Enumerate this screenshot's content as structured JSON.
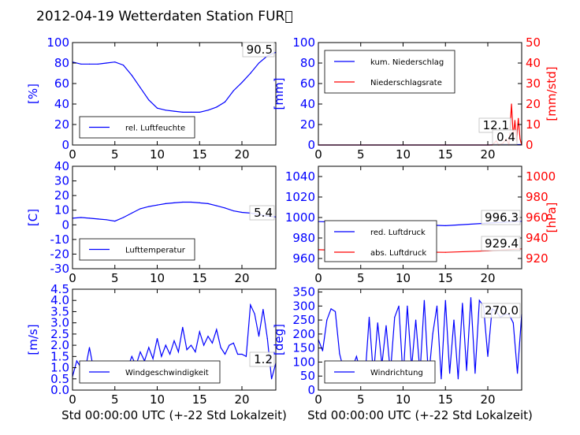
{
  "figure": {
    "title": "2012-04-19 Wetterdaten Station FUR\u0000"
  },
  "colors": {
    "left_axis": "#0000ff",
    "right_axis": "#ff0000",
    "series_blue": "#0000ff",
    "series_red": "#ff0000",
    "faint": "#7070ff"
  },
  "chart_data": [
    {
      "id": "humidity",
      "type": "line",
      "ylabel": "[%]",
      "xlim": [
        0,
        24
      ],
      "ylim": [
        0,
        100
      ],
      "xticks": [
        "0",
        "5",
        "10",
        "15",
        "20"
      ],
      "yticks": [
        "0",
        "20",
        "40",
        "60",
        "80",
        "100"
      ],
      "legend": [
        "rel. Luftfeuchte"
      ],
      "legend_position": "lower-left",
      "last_value_label": "90.5",
      "series": [
        {
          "name": "rel. Luftfeuchte",
          "color": "blue",
          "x": [
            0,
            1,
            2,
            3,
            4,
            5,
            6,
            7,
            8,
            9,
            10,
            11,
            12,
            13,
            14,
            15,
            16,
            17,
            18,
            19,
            20,
            21,
            22,
            23,
            24
          ],
          "y": [
            81,
            79,
            79,
            79,
            80,
            81,
            78,
            68,
            56,
            44,
            36,
            34,
            33,
            32,
            32,
            32,
            34,
            37,
            42,
            53,
            61,
            70,
            80,
            87,
            90.5
          ]
        }
      ]
    },
    {
      "id": "precipitation",
      "type": "line",
      "ylabel": "[mm]",
      "ylabel_right": "[mm/std]",
      "xlim": [
        0,
        24
      ],
      "ylim": [
        0,
        100
      ],
      "ylim_right": [
        0,
        50
      ],
      "xticks": [
        "0",
        "5",
        "10",
        "15",
        "20"
      ],
      "yticks": [
        "0",
        "20",
        "40",
        "60",
        "80",
        "100"
      ],
      "yticks_right": [
        "0",
        "10",
        "20",
        "30",
        "40",
        "50"
      ],
      "legend": [
        "kum. Niederschlag",
        "Niederschlagsrate"
      ],
      "legend_position": "upper-left",
      "value_labels": [
        "12.1",
        "0.4"
      ],
      "series": [
        {
          "name": "kum. Niederschlag",
          "color": "blue",
          "axis": "left",
          "x": [
            0,
            20,
            21,
            22,
            23,
            24
          ],
          "y": [
            0,
            0,
            0.2,
            0.3,
            0.4,
            0.4
          ]
        },
        {
          "name": "Niederschlagsrate",
          "color": "red",
          "axis": "right",
          "x": [
            0,
            20.5,
            21,
            21.3,
            21.8,
            22.2,
            22.5,
            22.8,
            23,
            23.2,
            23.4,
            23.6,
            23.8,
            24
          ],
          "y": [
            0,
            0,
            2,
            0,
            1,
            3,
            0,
            20,
            4,
            12,
            2,
            13,
            3,
            0
          ]
        }
      ]
    },
    {
      "id": "temperature",
      "type": "line",
      "ylabel": "[C]",
      "xlim": [
        0,
        24
      ],
      "ylim": [
        -30,
        40
      ],
      "xticks": [
        "0",
        "5",
        "10",
        "15",
        "20"
      ],
      "yticks": [
        "-30",
        "-20",
        "-10",
        "0",
        "10",
        "20",
        "30",
        "40"
      ],
      "legend": [
        "Lufttemperatur"
      ],
      "legend_position": "lower-left",
      "last_value_label": "5.4",
      "series": [
        {
          "name": "Lufttemperatur",
          "color": "blue",
          "x": [
            0,
            1,
            2,
            3,
            4,
            5,
            6,
            7,
            8,
            9,
            10,
            11,
            12,
            13,
            14,
            15,
            16,
            17,
            18,
            19,
            20,
            21,
            22,
            23,
            24
          ],
          "y": [
            4.5,
            5,
            4.5,
            4,
            3.5,
            2.5,
            5,
            8,
            11,
            12.5,
            13.5,
            14.5,
            15,
            15.5,
            15.5,
            15,
            14.5,
            13,
            11.5,
            9.5,
            8.5,
            8,
            7,
            6,
            5.4
          ]
        }
      ]
    },
    {
      "id": "pressure",
      "type": "line",
      "xlim": [
        0,
        24
      ],
      "ylim": [
        950,
        1050
      ],
      "ylim_right": [
        910,
        1010
      ],
      "xticks": [
        "0",
        "5",
        "10",
        "15",
        "20"
      ],
      "yticks": [
        "960",
        "980",
        "1000",
        "1020",
        "1040"
      ],
      "yticks_right": [
        "920",
        "940",
        "960",
        "980",
        "1000"
      ],
      "ylabel_right": "[hPa]",
      "legend": [
        "red. Luftdruck",
        "abs. Luftdruck"
      ],
      "legend_position": "lower-left",
      "value_labels": [
        "996.3",
        "929.4"
      ],
      "series": [
        {
          "name": "red. Luftdruck",
          "color": "blue",
          "axis": "left",
          "x": [
            0,
            5,
            10,
            15,
            20,
            24
          ],
          "y": [
            996,
            995,
            993.5,
            992,
            994.5,
            996.3
          ]
        },
        {
          "name": "abs. Luftdruck",
          "color": "red",
          "axis": "right",
          "x": [
            0,
            5,
            10,
            15,
            20,
            24
          ],
          "y": [
            928.5,
            927.5,
            926.5,
            926,
            927.5,
            929.4
          ]
        }
      ]
    },
    {
      "id": "wind_speed",
      "type": "line",
      "ylabel": "[m/s]",
      "xlabel": "Std 00:00:00 UTC (+-22 Std Lokalzeit)",
      "xlim": [
        0,
        24
      ],
      "ylim": [
        0,
        4.5
      ],
      "xticks": [
        "0",
        "5",
        "10",
        "15",
        "20"
      ],
      "yticks": [
        "0.0",
        "0.5",
        "1.0",
        "1.5",
        "2.0",
        "2.5",
        "3.0",
        "3.5",
        "4.0",
        "4.5"
      ],
      "legend": [
        "Windgeschwindigkeit"
      ],
      "legend_position": "lower-left",
      "last_value_label": "1.2",
      "series": [
        {
          "name": "Windgeschwindigkeit",
          "color": "blue",
          "x": [
            0,
            0.5,
            1,
            1.5,
            2,
            2.5,
            3,
            3.5,
            4,
            4.5,
            5,
            5.5,
            6,
            6.5,
            7,
            7.5,
            8,
            8.5,
            9,
            9.5,
            10,
            10.5,
            11,
            11.5,
            12,
            12.5,
            13,
            13.5,
            14,
            14.5,
            15,
            15.5,
            16,
            16.5,
            17,
            17.5,
            18,
            18.5,
            19,
            19.5,
            20,
            20.5,
            21,
            21.5,
            22,
            22.5,
            23,
            23.5,
            24
          ],
          "y": [
            0.6,
            1.3,
            1.0,
            0.9,
            1.9,
            0.9,
            0.8,
            0.7,
            0.5,
            0.6,
            0.4,
            0.5,
            0.9,
            1.0,
            1.5,
            1.1,
            1.7,
            1.3,
            1.9,
            1.4,
            2.3,
            1.5,
            2.0,
            1.6,
            2.2,
            1.7,
            2.8,
            1.8,
            2.0,
            1.7,
            2.6,
            2.0,
            2.4,
            2.1,
            2.7,
            1.9,
            1.6,
            2.0,
            2.1,
            1.6,
            1.6,
            1.5,
            3.8,
            3.4,
            2.4,
            3.6,
            2.3,
            0.5,
            1.2
          ]
        }
      ]
    },
    {
      "id": "wind_direction",
      "type": "line",
      "ylabel": "[deg]",
      "xlabel": "Std 00:00:00 UTC (+-22 Std Lokalzeit)",
      "xlim": [
        0,
        24
      ],
      "ylim": [
        0,
        360
      ],
      "xticks": [
        "0",
        "5",
        "10",
        "15",
        "20"
      ],
      "yticks": [
        "0",
        "50",
        "100",
        "150",
        "200",
        "250",
        "300",
        "350"
      ],
      "legend": [
        "Windrichtung"
      ],
      "legend_position": "lower-left",
      "last_value_label": "270.0",
      "series": [
        {
          "name": "Windrichtung",
          "color": "blue",
          "x": [
            0,
            0.5,
            1,
            1.5,
            2,
            2.5,
            3,
            3.5,
            4,
            4.5,
            5,
            5.5,
            6,
            6.5,
            7,
            7.5,
            8,
            8.5,
            9,
            9.5,
            10,
            10.5,
            11,
            11.5,
            12,
            12.5,
            13,
            13.5,
            14,
            14.5,
            15,
            15.5,
            16,
            16.5,
            17,
            17.5,
            18,
            18.5,
            19,
            19.5,
            20,
            20.5,
            21,
            21.5,
            22,
            22.5,
            23,
            23.5,
            24
          ],
          "y": [
            180,
            140,
            250,
            290,
            280,
            130,
            70,
            50,
            80,
            120,
            60,
            40,
            260,
            50,
            240,
            90,
            230,
            60,
            260,
            300,
            40,
            300,
            80,
            250,
            60,
            320,
            40,
            200,
            300,
            40,
            320,
            60,
            250,
            40,
            310,
            70,
            330,
            60,
            320,
            300,
            120,
            290,
            280,
            260,
            270,
            270,
            240,
            60,
            270
          ]
        }
      ]
    }
  ]
}
